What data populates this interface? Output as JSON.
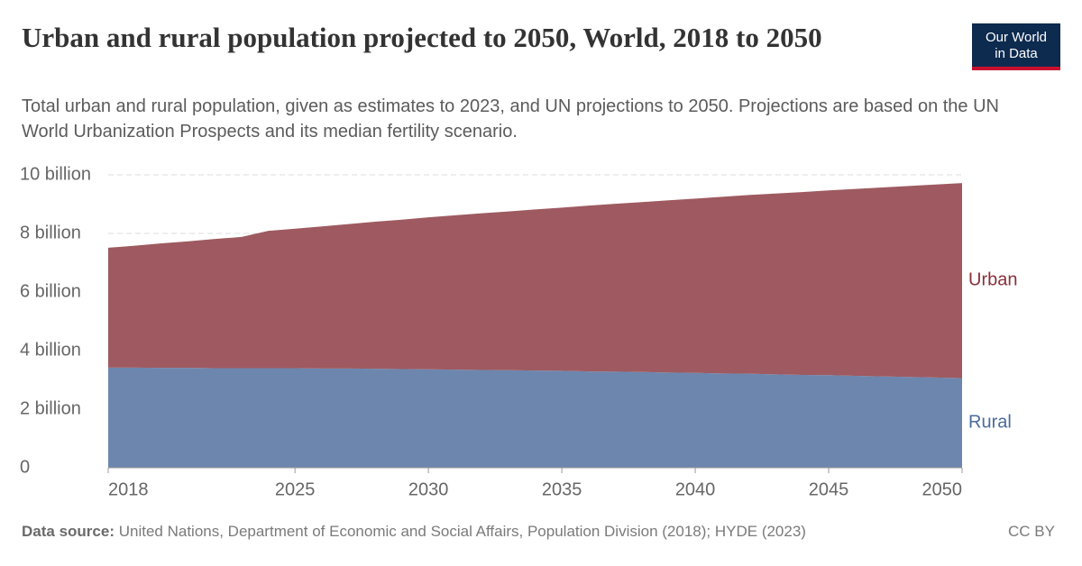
{
  "header": {
    "logo": [
      "Our World",
      "in Data"
    ]
  },
  "chart_data": {
    "type": "stacked-area",
    "title": "Urban and rural population projected to 2050, World, 2018 to 2050",
    "subtitle": "Total urban and rural population, given as estimates to 2023, and UN projections to 2050. Projections are based on the UN World Urbanization Prospects and its median fertility scenario.",
    "x": [
      2018,
      2019,
      2020,
      2021,
      2022,
      2023,
      2024,
      2025,
      2026,
      2027,
      2028,
      2029,
      2030,
      2031,
      2032,
      2033,
      2034,
      2035,
      2036,
      2037,
      2038,
      2039,
      2040,
      2041,
      2042,
      2043,
      2044,
      2045,
      2046,
      2047,
      2048,
      2049,
      2050
    ],
    "series": [
      {
        "name": "Rural",
        "color": "#6d86ae",
        "label_color": "#4c6a9c",
        "values": [
          3.42,
          3.42,
          3.41,
          3.41,
          3.4,
          3.4,
          3.4,
          3.4,
          3.39,
          3.39,
          3.38,
          3.37,
          3.36,
          3.35,
          3.34,
          3.33,
          3.32,
          3.31,
          3.29,
          3.28,
          3.27,
          3.25,
          3.24,
          3.22,
          3.21,
          3.19,
          3.17,
          3.16,
          3.14,
          3.12,
          3.1,
          3.08,
          3.06
        ]
      },
      {
        "name": "Urban",
        "color": "#9e5a60",
        "label_color": "#883039",
        "values": [
          4.09,
          4.16,
          4.25,
          4.32,
          4.41,
          4.48,
          4.69,
          4.76,
          4.85,
          4.93,
          5.02,
          5.1,
          5.19,
          5.27,
          5.35,
          5.42,
          5.5,
          5.57,
          5.66,
          5.73,
          5.8,
          5.88,
          5.95,
          6.03,
          6.1,
          6.17,
          6.24,
          6.31,
          6.38,
          6.45,
          6.52,
          6.59,
          6.66
        ]
      }
    ],
    "xlim": [
      2018,
      2050
    ],
    "xticks": [
      2018,
      2025,
      2030,
      2035,
      2040,
      2045,
      2050
    ],
    "ylim": [
      0,
      10
    ],
    "yticks": [
      0,
      {
        "value": 2,
        "label": "2 billion"
      },
      {
        "value": 4,
        "label": "4 billion"
      },
      {
        "value": 6,
        "label": "6 billion"
      },
      {
        "value": 8,
        "label": "8 billion"
      },
      {
        "value": 10,
        "label": "10 billion"
      }
    ],
    "grid": true
  },
  "footer": {
    "source_label": "Data source:",
    "source": "United Nations, Department of Economic and Social Affairs, Population Division (2018); HYDE (2023)",
    "license": "CC BY"
  }
}
